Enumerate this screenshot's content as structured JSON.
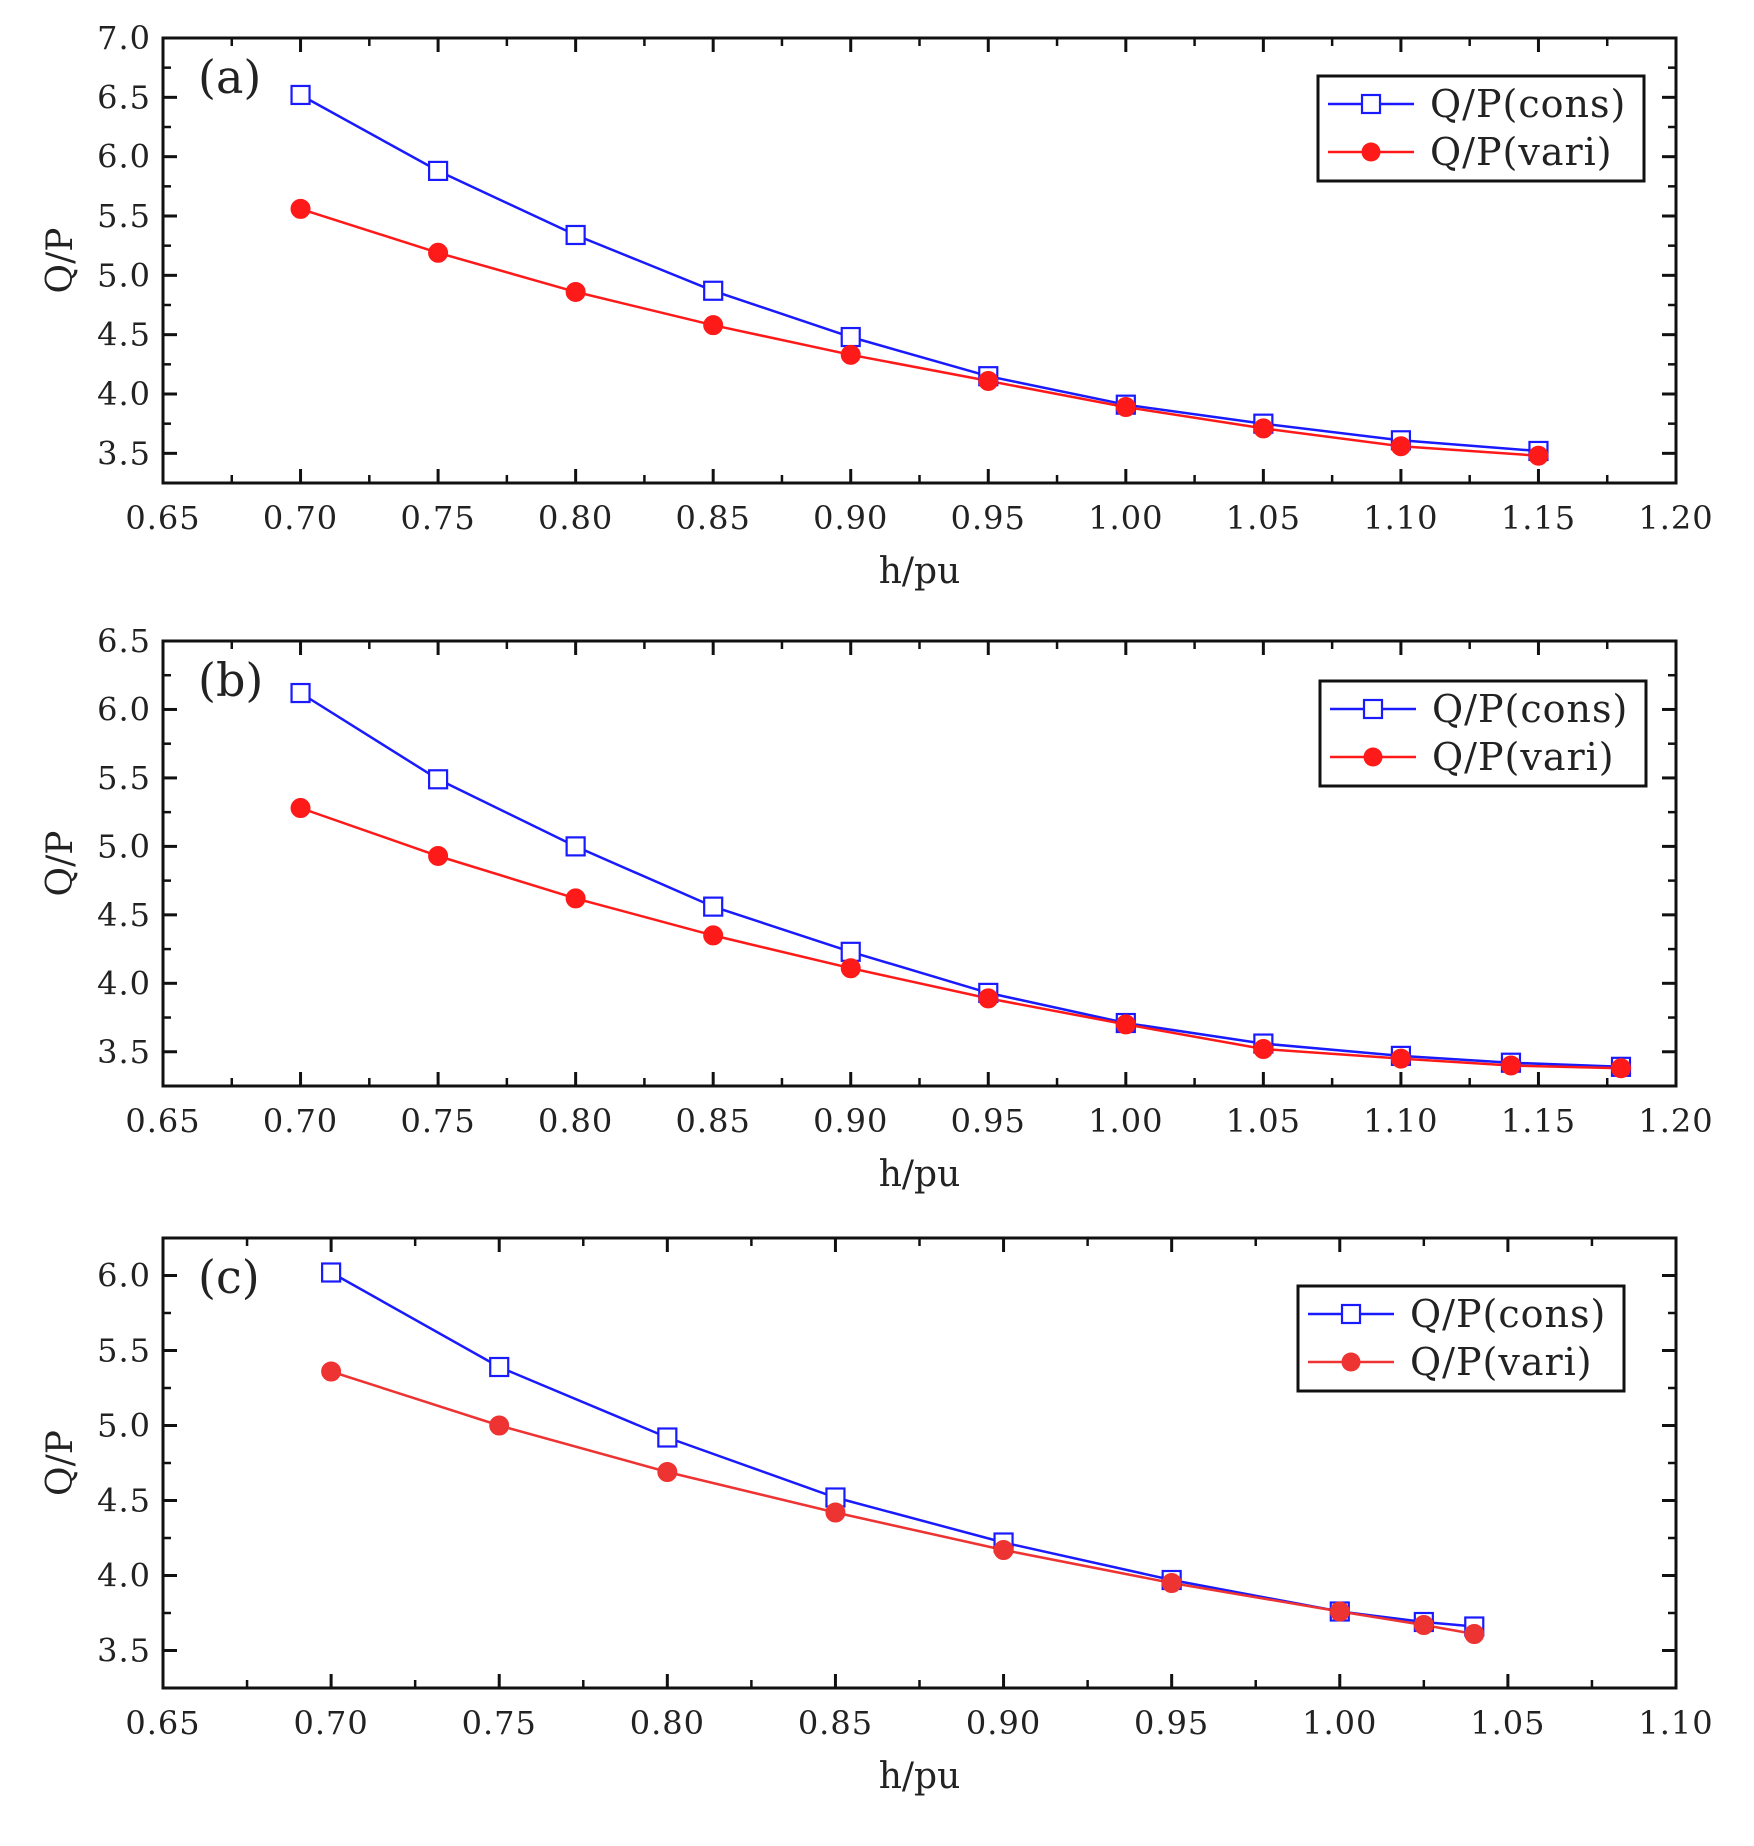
{
  "figure": {
    "description_free": true
  },
  "chart_data": [
    {
      "type": "line",
      "panel_label": "(a)",
      "xlabel": "h/pu",
      "ylabel": "Q/P",
      "xlim": [
        0.65,
        1.2
      ],
      "ylim": [
        3.25,
        7.0
      ],
      "xticks": [
        0.65,
        0.7,
        0.75,
        0.8,
        0.85,
        0.9,
        0.95,
        1.0,
        1.05,
        1.1,
        1.15,
        1.2
      ],
      "xtick_labels": [
        "0.65",
        "0.70",
        "0.75",
        "0.80",
        "0.85",
        "0.90",
        "0.95",
        "1.00",
        "1.05",
        "1.10",
        "1.15",
        "1.20"
      ],
      "yticks": [
        3.5,
        4.0,
        4.5,
        5.0,
        5.5,
        6.0,
        6.5,
        7.0
      ],
      "ytick_labels": [
        "3.5",
        "4.0",
        "4.5",
        "5.0",
        "5.5",
        "6.0",
        "6.5",
        "7.0"
      ],
      "legend_position": "top-right",
      "series": [
        {
          "name": "Q/P(cons)",
          "color": "#1a1aff",
          "marker": "open-square",
          "x": [
            0.7,
            0.75,
            0.8,
            0.85,
            0.9,
            0.95,
            1.0,
            1.05,
            1.1,
            1.15
          ],
          "values": [
            6.52,
            5.88,
            5.34,
            4.87,
            4.48,
            4.15,
            3.91,
            3.75,
            3.61,
            3.52
          ]
        },
        {
          "name": "Q/P(vari)",
          "color": "#ff1a1a",
          "marker": "filled-circle",
          "x": [
            0.7,
            0.75,
            0.8,
            0.85,
            0.9,
            0.95,
            1.0,
            1.05,
            1.1,
            1.15
          ],
          "values": [
            5.56,
            5.19,
            4.86,
            4.58,
            4.33,
            4.11,
            3.89,
            3.71,
            3.56,
            3.48
          ]
        }
      ]
    },
    {
      "type": "line",
      "panel_label": "(b)",
      "xlabel": "h/pu",
      "ylabel": "Q/P",
      "xlim": [
        0.65,
        1.2
      ],
      "ylim": [
        3.25,
        6.5
      ],
      "xticks": [
        0.65,
        0.7,
        0.75,
        0.8,
        0.85,
        0.9,
        0.95,
        1.0,
        1.05,
        1.1,
        1.15,
        1.2
      ],
      "xtick_labels": [
        "0.65",
        "0.70",
        "0.75",
        "0.80",
        "0.85",
        "0.90",
        "0.95",
        "1.00",
        "1.05",
        "1.10",
        "1.15",
        "1.20"
      ],
      "yticks": [
        3.5,
        4.0,
        4.5,
        5.0,
        5.5,
        6.0,
        6.5
      ],
      "ytick_labels": [
        "3.5",
        "4.0",
        "4.5",
        "5.0",
        "5.5",
        "6.0",
        "6.5"
      ],
      "legend_position": "top-right",
      "series": [
        {
          "name": "Q/P(cons)",
          "color": "#1a1aff",
          "marker": "open-square",
          "x": [
            0.7,
            0.75,
            0.8,
            0.85,
            0.9,
            0.95,
            1.0,
            1.05,
            1.1,
            1.14,
            1.18
          ],
          "values": [
            6.12,
            5.49,
            5.0,
            4.56,
            4.23,
            3.93,
            3.71,
            3.56,
            3.47,
            3.42,
            3.39
          ]
        },
        {
          "name": "Q/P(vari)",
          "color": "#ff1a1a",
          "marker": "filled-circle",
          "x": [
            0.7,
            0.75,
            0.8,
            0.85,
            0.9,
            0.95,
            1.0,
            1.05,
            1.1,
            1.14,
            1.18
          ],
          "values": [
            5.28,
            4.93,
            4.62,
            4.35,
            4.11,
            3.89,
            3.7,
            3.52,
            3.45,
            3.4,
            3.38
          ]
        }
      ]
    },
    {
      "type": "line",
      "panel_label": "(c)",
      "xlabel": "h/pu",
      "ylabel": "Q/P",
      "xlim": [
        0.65,
        1.1
      ],
      "ylim": [
        3.25,
        6.25
      ],
      "xticks": [
        0.65,
        0.7,
        0.75,
        0.8,
        0.85,
        0.9,
        0.95,
        1.0,
        1.05,
        1.1
      ],
      "xtick_labels": [
        "0.65",
        "0.70",
        "0.75",
        "0.80",
        "0.85",
        "0.90",
        "0.95",
        "1.00",
        "1.05",
        "1.10"
      ],
      "yticks": [
        3.5,
        4.0,
        4.5,
        5.0,
        5.5,
        6.0
      ],
      "ytick_labels": [
        "3.5",
        "4.0",
        "4.5",
        "5.0",
        "5.5",
        "6.0"
      ],
      "legend_position": "top-right",
      "series": [
        {
          "name": "Q/P(cons)",
          "color": "#1a1aff",
          "marker": "open-square",
          "x": [
            0.7,
            0.75,
            0.8,
            0.85,
            0.9,
            0.95,
            1.0,
            1.025,
            1.04
          ],
          "values": [
            6.02,
            5.39,
            4.92,
            4.52,
            4.22,
            3.97,
            3.76,
            3.69,
            3.66
          ]
        },
        {
          "name": "Q/P(vari)",
          "color": "#ee3333",
          "marker": "filled-circle",
          "x": [
            0.7,
            0.75,
            0.8,
            0.85,
            0.9,
            0.95,
            1.0,
            1.025,
            1.04
          ],
          "values": [
            5.36,
            5.0,
            4.69,
            4.42,
            4.17,
            3.95,
            3.76,
            3.67,
            3.61
          ]
        }
      ]
    }
  ]
}
